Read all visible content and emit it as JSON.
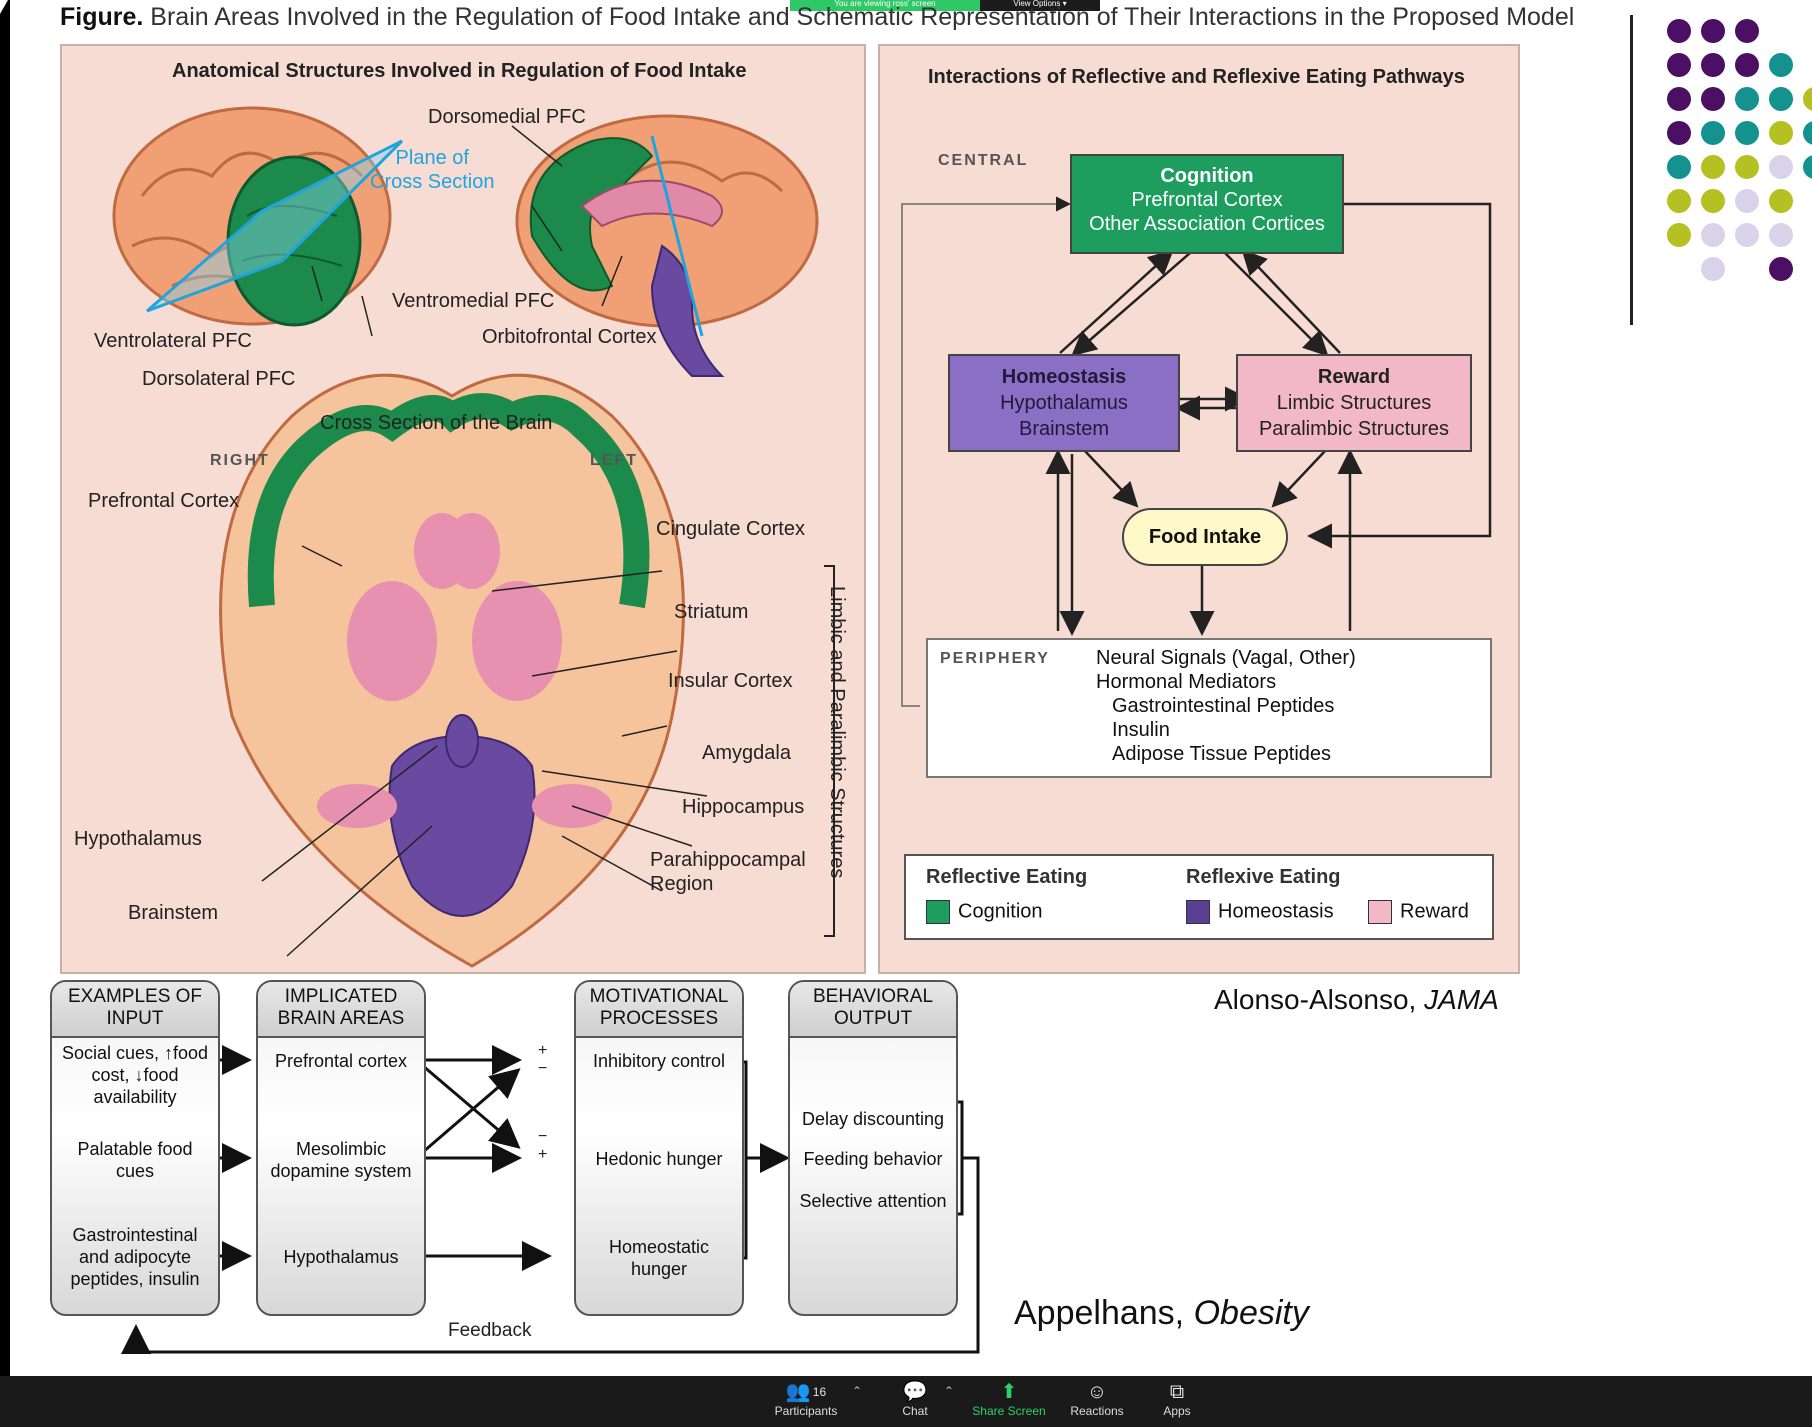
{
  "banner": {
    "viewing_text": "You are viewing ross' screen",
    "view_options": "View Options ▾"
  },
  "figure": {
    "label": "Figure.",
    "title": "Brain Areas Involved in the Regulation of Food Intake and Schematic Representation of Their Interactions in the Proposed Model"
  },
  "left_panel": {
    "title": "Anatomical Structures Involved in Regulation of Food Intake",
    "labels": {
      "dorsomedial_pfc": "Dorsomedial PFC",
      "plane_line1": "Plane of",
      "plane_line2": "Cross Section",
      "ventromedial_pfc": "Ventromedial PFC",
      "orbitofrontal": "Orbitofrontal Cortex",
      "ventrolateral_pfc": "Ventrolateral PFC",
      "dorsolateral_pfc": "Dorsolateral PFC",
      "cross_section_title": "Cross Section of the Brain",
      "right": "RIGHT",
      "left": "LEFT",
      "prefrontal_cortex": "Prefrontal Cortex",
      "cingulate": "Cingulate Cortex",
      "striatum": "Striatum",
      "insular": "Insular Cortex",
      "amygdala": "Amygdala",
      "hippocampus": "Hippocampus",
      "parahippocampal1": "Parahippocampal",
      "parahippocampal2": "Region",
      "hypothalamus": "Hypothalamus",
      "brainstem": "Brainstem",
      "limbic": "Limbic and Paralimbic Structures"
    }
  },
  "right_panel": {
    "title": "Interactions of Reflective and Reflexive Eating Pathways",
    "central": "CENTRAL",
    "periphery": "PERIPHERY",
    "cognition": {
      "title": "Cognition",
      "line1": "Prefrontal Cortex",
      "line2": "Other Association Cortices"
    },
    "homeostasis": {
      "title": "Homeostasis",
      "line1": "Hypothalamus",
      "line2": "Brainstem"
    },
    "reward": {
      "title": "Reward",
      "line1": "Limbic Structures",
      "line2": "Paralimbic Structures"
    },
    "food_intake": "Food Intake",
    "periphery_lines": [
      "Neural Signals (Vagal, Other)",
      "Hormonal Mediators",
      "Gastrointestinal Peptides",
      "Insulin",
      "Adipose Tissue Peptides"
    ],
    "legend": {
      "reflective": "Reflective Eating",
      "reflexive": "Reflexive Eating",
      "cognition": "Cognition",
      "homeostasis": "Homeostasis",
      "reward": "Reward"
    }
  },
  "colors": {
    "cognition": "#1d9e5f",
    "homeostasis": "#8a6fc4",
    "reward": "#f2b8c8",
    "food": "#fff8c8",
    "brain_green": "#1c8a4a",
    "brain_purple": "#6a4aa0",
    "brain_pink": "#e08aa8"
  },
  "flowchart": {
    "col1": {
      "header": "EXAMPLES OF INPUT",
      "cells": [
        "Social cues, ↑food cost, ↓food availability",
        "Palatable food cues",
        "Gastrointestinal and adipocyte peptides, insulin"
      ]
    },
    "col2": {
      "header": "IMPLICATED BRAIN AREAS",
      "cells": [
        "Prefrontal cortex",
        "Mesolimbic dopamine system",
        "Hypothalamus"
      ]
    },
    "col3": {
      "header": "MOTIVATIONAL PROCESSES",
      "cells": [
        "Inhibitory control",
        "Hedonic hunger",
        "Homeostatic hunger"
      ]
    },
    "col4": {
      "header": "BEHAVIORAL OUTPUT",
      "cells": [
        "Delay discounting",
        "Feeding behavior",
        "Selective attention"
      ]
    },
    "signs": [
      "+",
      "−",
      "−",
      "+"
    ],
    "feedback": "Feedback"
  },
  "citations": {
    "jama_author": "Alonso-Alsonso, ",
    "jama_journal": "JAMA",
    "obesity_author": "Appelhans, ",
    "obesity_journal": "Obesity"
  },
  "taskbar": {
    "participants_count": "16",
    "participants": "Participants",
    "chat": "Chat",
    "share_screen": "Share Screen",
    "reactions": "Reactions",
    "apps": "Apps"
  },
  "decor_dots": [
    "#4b0f63",
    "#4b0f63",
    "#4b0f63",
    "#4b0f63",
    "#4b0f63",
    "#4b0f63",
    "#13928f",
    "#4b0f63",
    "#4b0f63",
    "#13928f",
    "#13928f",
    "#b5c122",
    "#4b0f63",
    "#13928f",
    "#13928f",
    "#b5c122",
    "#13928f",
    "#13928f",
    "#b5c122",
    "#b5c122",
    "#d9d3ea",
    "#13928f",
    "#b5c122",
    "#b5c122",
    "#d9d3ea",
    "#b5c122",
    "#b5c122",
    "#d9d3ea",
    "#d9d3ea",
    "#d9d3ea",
    "#d9d3ea"
  ]
}
